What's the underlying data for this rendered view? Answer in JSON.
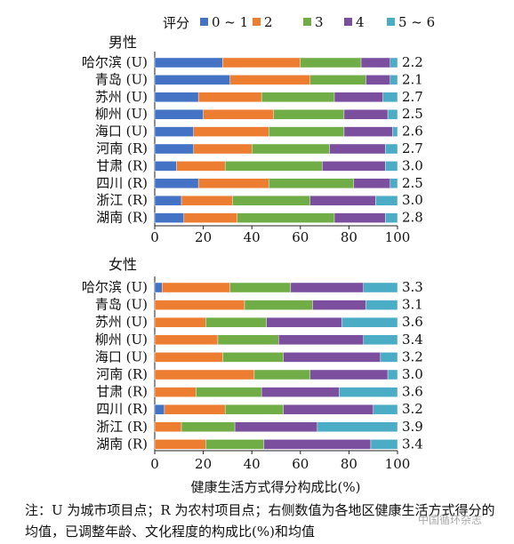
{
  "legend": {
    "title": "评分",
    "items": [
      {
        "label": "0 ~ 1",
        "color": "#4472C4"
      },
      {
        "label": "2",
        "color": "#ED7D31"
      },
      {
        "label": "3",
        "color": "#70AD47"
      },
      {
        "label": "4",
        "color": "#7B4F9E"
      },
      {
        "label": "5 ~ 6",
        "color": "#4BACC6"
      }
    ]
  },
  "chart_data": [
    {
      "type": "bar",
      "orientation": "horizontal",
      "stacked": true,
      "title": "男性",
      "categories": [
        "哈尔滨 (U)",
        "青岛 (U)",
        "苏州 (U)",
        "柳州 (U)",
        "海口 (U)",
        "河南 (R)",
        "甘肃 (R)",
        "四川 (R)",
        "浙江 (R)",
        "湖南 (R)"
      ],
      "series": [
        {
          "name": "0 ~ 1",
          "values": [
            28,
            31,
            18,
            20,
            16,
            16,
            9,
            18,
            11,
            12
          ]
        },
        {
          "name": "2",
          "values": [
            32,
            33,
            26,
            29,
            31,
            24,
            20,
            29,
            21,
            22
          ]
        },
        {
          "name": "3",
          "values": [
            25,
            23,
            30,
            29,
            31,
            32,
            40,
            35,
            32,
            40
          ]
        },
        {
          "name": "4",
          "values": [
            12,
            10,
            20,
            18,
            20,
            23,
            26,
            15,
            27,
            21
          ]
        },
        {
          "name": "5 ~ 6",
          "values": [
            3,
            3,
            6,
            4,
            2,
            5,
            5,
            3,
            9,
            5
          ]
        }
      ],
      "right_values": [
        "2.2",
        "2.1",
        "2.7",
        "2.5",
        "2.6",
        "2.7",
        "3.0",
        "2.5",
        "3.0",
        "2.8"
      ],
      "xlim": [
        0,
        100
      ],
      "xticks": [
        "0",
        "20",
        "40",
        "60",
        "80",
        "100"
      ],
      "grid": false
    },
    {
      "type": "bar",
      "orientation": "horizontal",
      "stacked": true,
      "title": "女性",
      "categories": [
        "哈尔滨 (U)",
        "青岛 (U)",
        "苏州 (U)",
        "柳州 (U)",
        "海口 (U)",
        "河南 (R)",
        "甘肃 (R)",
        "四川 (R)",
        "浙江 (R)",
        "湖南 (R)"
      ],
      "series": [
        {
          "name": "0 ~ 1",
          "values": [
            3,
            0,
            0,
            0,
            0,
            0,
            0,
            4,
            0,
            0
          ]
        },
        {
          "name": "2",
          "values": [
            28,
            37,
            21,
            26,
            28,
            41,
            17,
            25,
            11,
            21
          ]
        },
        {
          "name": "3",
          "values": [
            25,
            28,
            25,
            25,
            25,
            23,
            27,
            24,
            22,
            24
          ]
        },
        {
          "name": "4",
          "values": [
            30,
            22,
            31,
            35,
            40,
            32,
            32,
            37,
            34,
            44
          ]
        },
        {
          "name": "5 ~ 6",
          "values": [
            14,
            13,
            23,
            14,
            7,
            4,
            24,
            10,
            33,
            11
          ]
        }
      ],
      "right_values": [
        "3.3",
        "3.1",
        "3.6",
        "3.4",
        "3.2",
        "3.0",
        "3.6",
        "3.2",
        "3.9",
        "3.4"
      ],
      "xlim": [
        0,
        100
      ],
      "xticks": [
        "0",
        "20",
        "40",
        "60",
        "80",
        "100"
      ],
      "xlabel": "健康生活方式得分构成比(%)",
      "grid": false
    }
  ],
  "note": "注：U 为城市项目点；R 为农村项目点；右侧数值为各地区健康生活方式得分的均值，已调整年龄、文化程度的构成比(%)和均值",
  "watermark": "中国循环杂志"
}
